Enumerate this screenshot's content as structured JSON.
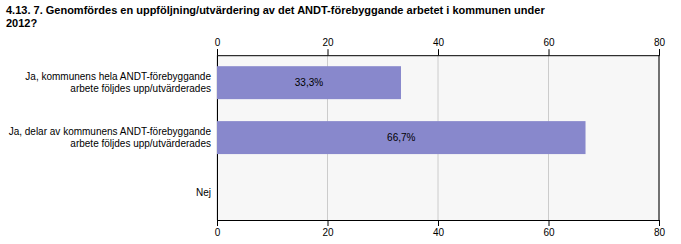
{
  "chart_data": {
    "type": "bar",
    "orientation": "horizontal",
    "title": "4.13. 7. Genomfördes en uppföljning/utvärdering av det ANDT-förebyggande arbetet i kommunen under\n2012?",
    "categories": [
      "Ja, kommunens hela ANDT-förebyggande\narbete följdes upp/utvärderades",
      "Ja, delar av kommunens ANDT-förebyggande\narbete följdes upp/utvärderades",
      "Nej"
    ],
    "values": [
      33.3,
      66.7,
      0.0
    ],
    "value_labels": [
      "33,3%",
      "66,7%",
      null
    ],
    "data_labels": true,
    "color": "#8888cc",
    "xlim": [
      0,
      80
    ],
    "xticks": [
      0,
      20,
      40,
      60,
      80
    ],
    "grid": true
  }
}
